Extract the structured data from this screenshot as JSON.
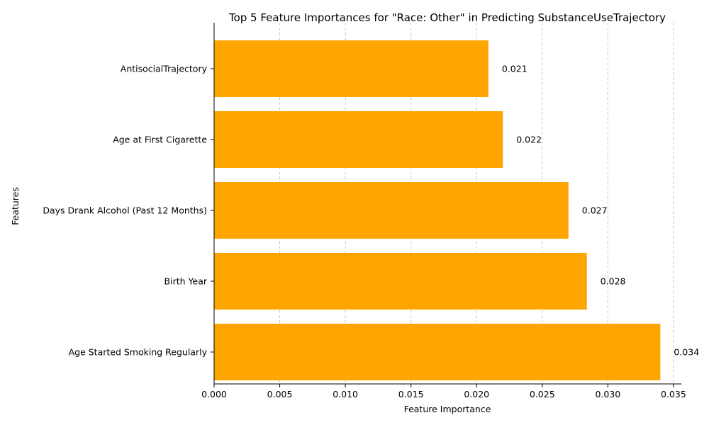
{
  "chart_data": {
    "type": "bar",
    "orientation": "horizontal",
    "title": "Top 5 Feature Importances for \"Race: Other\" in Predicting SubstanceUseTrajectory",
    "xlabel": "Feature Importance",
    "ylabel": "Features",
    "categories": [
      "AntisocialTrajectory",
      "Age at First Cigarette",
      "Days Drank Alcohol (Past 12 Months)",
      "Birth Year",
      "Age Started Smoking Regularly"
    ],
    "values": [
      0.0209,
      0.022,
      0.027,
      0.0284,
      0.034
    ],
    "value_labels": [
      "0.021",
      "0.022",
      "0.027",
      "0.028",
      "0.034"
    ],
    "xlim": [
      0,
      0.0356
    ],
    "xticks": [
      0.0,
      0.005,
      0.01,
      0.015,
      0.02,
      0.025,
      0.03,
      0.035
    ],
    "xtick_labels": [
      "0.000",
      "0.005",
      "0.010",
      "0.015",
      "0.020",
      "0.025",
      "0.030",
      "0.035"
    ],
    "grid": "x-dashed",
    "bar_color": "#ffa500",
    "grid_color": "#c8c8c8"
  }
}
